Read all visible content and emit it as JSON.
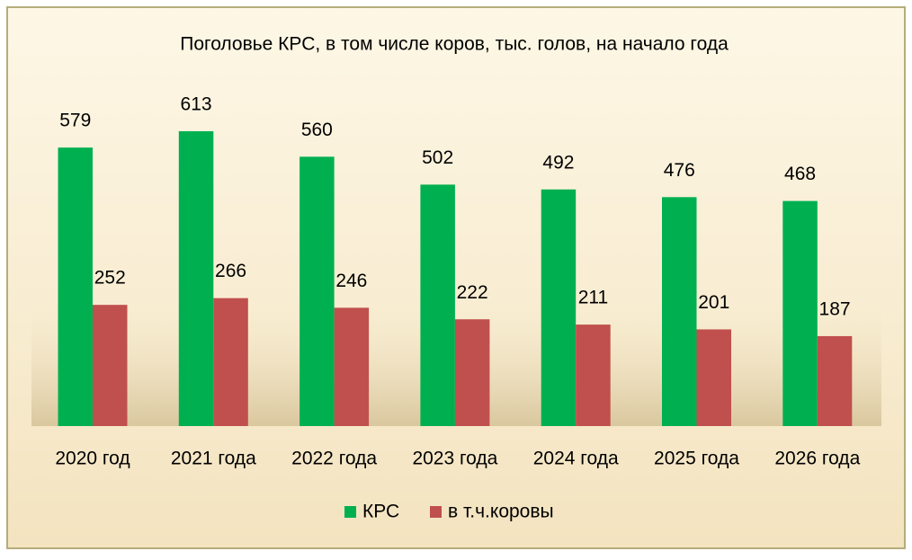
{
  "chart_data": {
    "type": "bar",
    "title": "Поголовье КРС, в том числе коров, тыс. голов, на начало года",
    "categories": [
      "2020 год",
      "2021 года",
      "2022 года",
      "2023 года",
      "2024 года",
      "2025 года",
      "2026 года"
    ],
    "series": [
      {
        "name": "КРС",
        "color": "#00b050",
        "values": [
          579,
          613,
          560,
          502,
          492,
          476,
          468
        ]
      },
      {
        "name": "в т.ч.коровы",
        "color": "#c0504d",
        "values": [
          252,
          266,
          246,
          222,
          211,
          201,
          187
        ]
      }
    ],
    "legend": "bottom"
  }
}
